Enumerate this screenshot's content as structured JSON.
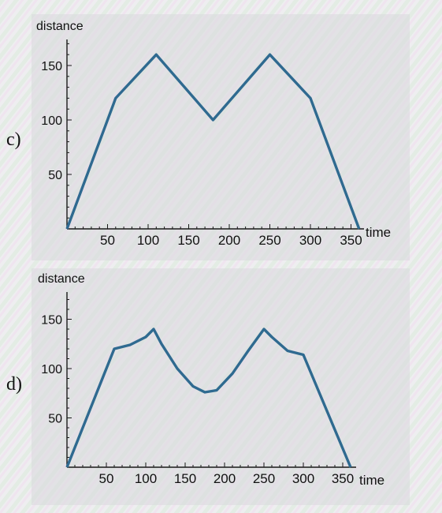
{
  "colors": {
    "line": "#2f6a90",
    "axis": "#1a1a1a",
    "panel": "#d9d9dc",
    "page": "#eeeef0"
  },
  "panels": [
    {
      "label": "c)",
      "ylabel": "distance",
      "xlabel": "time"
    },
    {
      "label": "d)",
      "ylabel": "distance",
      "xlabel": "time"
    }
  ],
  "chart_data": [
    {
      "type": "line",
      "title": "",
      "xlabel": "time",
      "ylabel": "distance",
      "xticks": [
        50,
        100,
        150,
        200,
        250,
        300,
        350
      ],
      "yticks": [
        50,
        100,
        150
      ],
      "xlim": [
        0,
        360
      ],
      "ylim": [
        0,
        170
      ],
      "grid": false,
      "series": [
        {
          "x": [
            0,
            60,
            110,
            180,
            250,
            300,
            360
          ],
          "y": [
            0,
            120,
            160,
            100,
            160,
            120,
            0
          ]
        }
      ]
    },
    {
      "type": "line",
      "title": "",
      "xlabel": "time",
      "ylabel": "distance",
      "xticks": [
        50,
        100,
        150,
        200,
        250,
        300,
        350
      ],
      "yticks": [
        50,
        100,
        150
      ],
      "xlim": [
        0,
        360
      ],
      "ylim": [
        0,
        170
      ],
      "grid": false,
      "series": [
        {
          "x": [
            0,
            60,
            80,
            100,
            110,
            120,
            140,
            160,
            175,
            190,
            210,
            230,
            250,
            260,
            280,
            300,
            360
          ],
          "y": [
            0,
            120,
            124,
            132,
            140,
            125,
            100,
            82,
            76,
            78,
            95,
            118,
            140,
            132,
            118,
            114,
            0
          ]
        }
      ]
    }
  ]
}
